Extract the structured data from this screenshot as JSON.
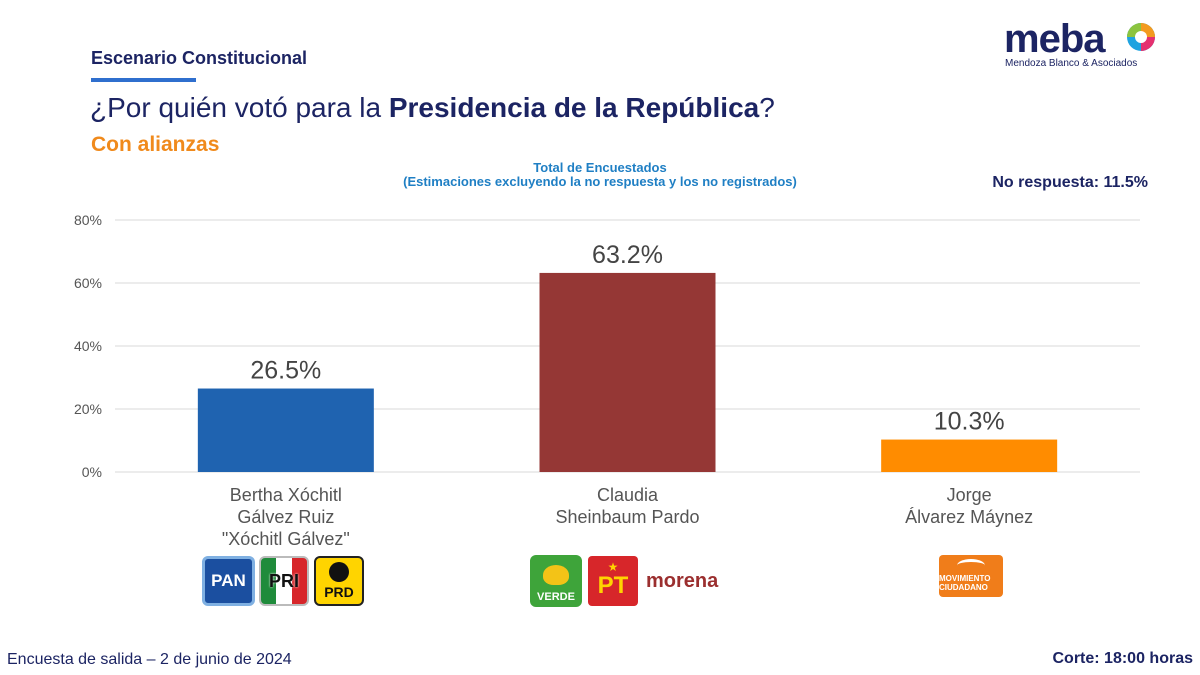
{
  "header": {
    "subtitle": "Escenario Constitucional",
    "question_prefix": "¿Por quién votó para la ",
    "question_bold": "Presidencia de la República",
    "question_suffix": "?",
    "scenario": "Con alianzas",
    "no_response": "No respuesta: 11.5%"
  },
  "logo": {
    "word": "meba",
    "subtitle": "Mendoza Blanco & Asociados"
  },
  "footer": {
    "left": "Encuesta de salida – 2 de junio de 2024",
    "right": "Corte: 18:00 horas"
  },
  "parties": {
    "pan": "PAN",
    "pri": "PRI",
    "prd": "PRD",
    "verde": "VERDE",
    "pt": "PT",
    "morena": "morena",
    "mc": "MOVIMIENTO CIUDADANO"
  },
  "chart_data": {
    "type": "bar",
    "title": "Total de Encuestados",
    "subtitle": "(Estimaciones excluyendo la no respuesta y los no registrados)",
    "categories": [
      [
        "Bertha Xóchitl",
        "Gálvez Ruiz",
        "\"Xóchitl Gálvez\""
      ],
      [
        "Claudia",
        "Sheinbaum Pardo"
      ],
      [
        "Jorge",
        "Álvarez Máynez"
      ]
    ],
    "values": [
      26.5,
      63.2,
      10.3
    ],
    "value_labels": [
      "26.5%",
      "63.2%",
      "10.3%"
    ],
    "colors": [
      "#1f63b0",
      "#953735",
      "#ff8c00"
    ],
    "ylim": [
      0,
      80
    ],
    "yticks": [
      0,
      20,
      40,
      60,
      80
    ],
    "ytick_labels": [
      "0%",
      "20%",
      "40%",
      "60%",
      "80%"
    ],
    "grid": true,
    "gridline_color": "#d9d9d9"
  }
}
